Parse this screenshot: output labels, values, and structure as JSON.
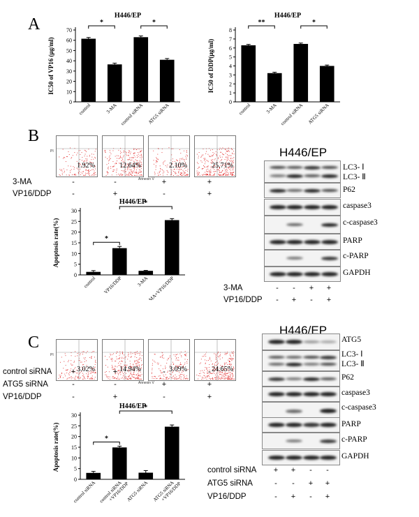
{
  "panels": {
    "A": {
      "letter": "A"
    },
    "B": {
      "letter": "B"
    },
    "C": {
      "letter": "C"
    }
  },
  "chart_data": [
    {
      "id": "chartA1",
      "type": "bar",
      "title": "H446/EP",
      "ylabel": "IC50 of VP16 (μg/ml)",
      "categories": [
        "control",
        "3-MA",
        "control siRNA",
        "ATG5 siRNA"
      ],
      "values": [
        61.5,
        36.5,
        63,
        41
      ],
      "errors": [
        1.2,
        1.2,
        1.2,
        1.2
      ],
      "ylim": [
        0,
        70
      ],
      "yticks": [
        0,
        10,
        20,
        30,
        40,
        50,
        60,
        70
      ],
      "significance": [
        {
          "from": 0,
          "to": 1,
          "label": "*"
        },
        {
          "from": 2,
          "to": 3,
          "label": "*"
        }
      ]
    },
    {
      "id": "chartA2",
      "type": "bar",
      "title": "H446/EP",
      "ylabel": "IC50 of DDP(μg/ml)",
      "categories": [
        "control",
        "3-MA",
        "control siRNA",
        "ATG5 siRNA"
      ],
      "values": [
        6.3,
        3.2,
        6.45,
        4.0
      ],
      "errors": [
        0.1,
        0.1,
        0.1,
        0.1
      ],
      "ylim": [
        0,
        8
      ],
      "yticks": [
        0,
        1,
        2,
        3,
        4,
        5,
        6,
        7,
        8
      ],
      "significance": [
        {
          "from": 0,
          "to": 1,
          "label": "**"
        },
        {
          "from": 2,
          "to": 3,
          "label": "*"
        }
      ]
    },
    {
      "id": "chartB",
      "type": "bar",
      "title": "H446/EP",
      "ylabel": "Apoptosis rate(%)",
      "categories": [
        "control",
        "VP16/DDP",
        "3-MA",
        "3-MA+VP16/DDP"
      ],
      "values": [
        1.4,
        12.5,
        1.9,
        25.6
      ],
      "errors": [
        0.6,
        0.8,
        0.2,
        0.7
      ],
      "ylim": [
        0,
        30
      ],
      "yticks": [
        0,
        5,
        10,
        15,
        20,
        25,
        30
      ],
      "significance": [
        {
          "from": 0,
          "to": 1,
          "label": "*"
        },
        {
          "from": 1,
          "to": 3,
          "label": "*"
        }
      ]
    },
    {
      "id": "chartC",
      "type": "bar",
      "title": "H446/EP",
      "ylabel": "Apoptosis rate(%)",
      "categories": [
        "control siRNA",
        "control siRNA +VP16/DDP",
        "ATG5 siRNA",
        "ATG5 siRNA +VP16/DDP"
      ],
      "values": [
        3.0,
        14.9,
        3.1,
        24.6
      ],
      "errors": [
        0.7,
        0.6,
        1.0,
        0.8
      ],
      "ylim": [
        0,
        30
      ],
      "yticks": [
        0,
        5,
        10,
        15,
        20,
        25,
        30
      ],
      "significance": [
        {
          "from": 0,
          "to": 1,
          "label": "*"
        },
        {
          "from": 1,
          "to": 3,
          "label": "*"
        }
      ]
    }
  ],
  "flowB": {
    "percents": [
      "1.92%",
      "12.64%",
      "2.10%",
      "25.71%"
    ],
    "x_axis": "Annexin V",
    "y_axis": "PI",
    "densities": [
      0.3,
      0.8,
      0.35,
      1.0
    ]
  },
  "flowC": {
    "percents": [
      "3.02%",
      "14.94%",
      "3.09%",
      "24.65%"
    ],
    "x_axis": "Annexin V",
    "y_axis": "PI",
    "densities": [
      0.4,
      0.85,
      0.45,
      0.95
    ]
  },
  "condB": {
    "rows": [
      {
        "label": "3-MA",
        "signs": [
          "-",
          "-",
          "+",
          "+"
        ]
      },
      {
        "label": "VP16/DDP",
        "signs": [
          "-",
          "+",
          "-",
          "+"
        ]
      }
    ]
  },
  "condC": {
    "rows": [
      {
        "label": "control siRNA",
        "signs": [
          "+",
          "+",
          "-",
          "-"
        ]
      },
      {
        "label": "ATG5 siRNA",
        "signs": [
          "-",
          "-",
          "+",
          "+"
        ]
      },
      {
        "label": "VP16/DDP",
        "signs": [
          "-",
          "+",
          "-",
          "+"
        ]
      }
    ]
  },
  "blotB": {
    "title": "H446/EP",
    "bands": [
      "LC3- Ⅰ",
      "LC3- Ⅱ",
      "P62",
      "caspase3",
      "c-caspase3",
      "PARP",
      "c-PARP",
      "GAPDH"
    ],
    "cond_rows": [
      {
        "label": "3-MA",
        "signs": [
          "-",
          "-",
          "+",
          "+"
        ]
      },
      {
        "label": "VP16/DDP",
        "signs": [
          "-",
          "+",
          "-",
          "+"
        ]
      }
    ]
  },
  "blotC": {
    "title": "H446/EP",
    "bands": [
      "ATG5",
      "LC3- Ⅰ",
      "LC3- Ⅱ",
      "P62",
      "caspase3",
      "c-caspase3",
      "PARP",
      "c-PARP",
      "GAPDH"
    ],
    "cond_rows": [
      {
        "label": "control siRNA",
        "signs": [
          "+",
          "+",
          "-",
          "-"
        ]
      },
      {
        "label": "ATG5 siRNA",
        "signs": [
          "-",
          "-",
          "+",
          "+"
        ]
      },
      {
        "label": "VP16/DDP",
        "signs": [
          "-",
          "+",
          "-",
          "+"
        ]
      }
    ]
  }
}
